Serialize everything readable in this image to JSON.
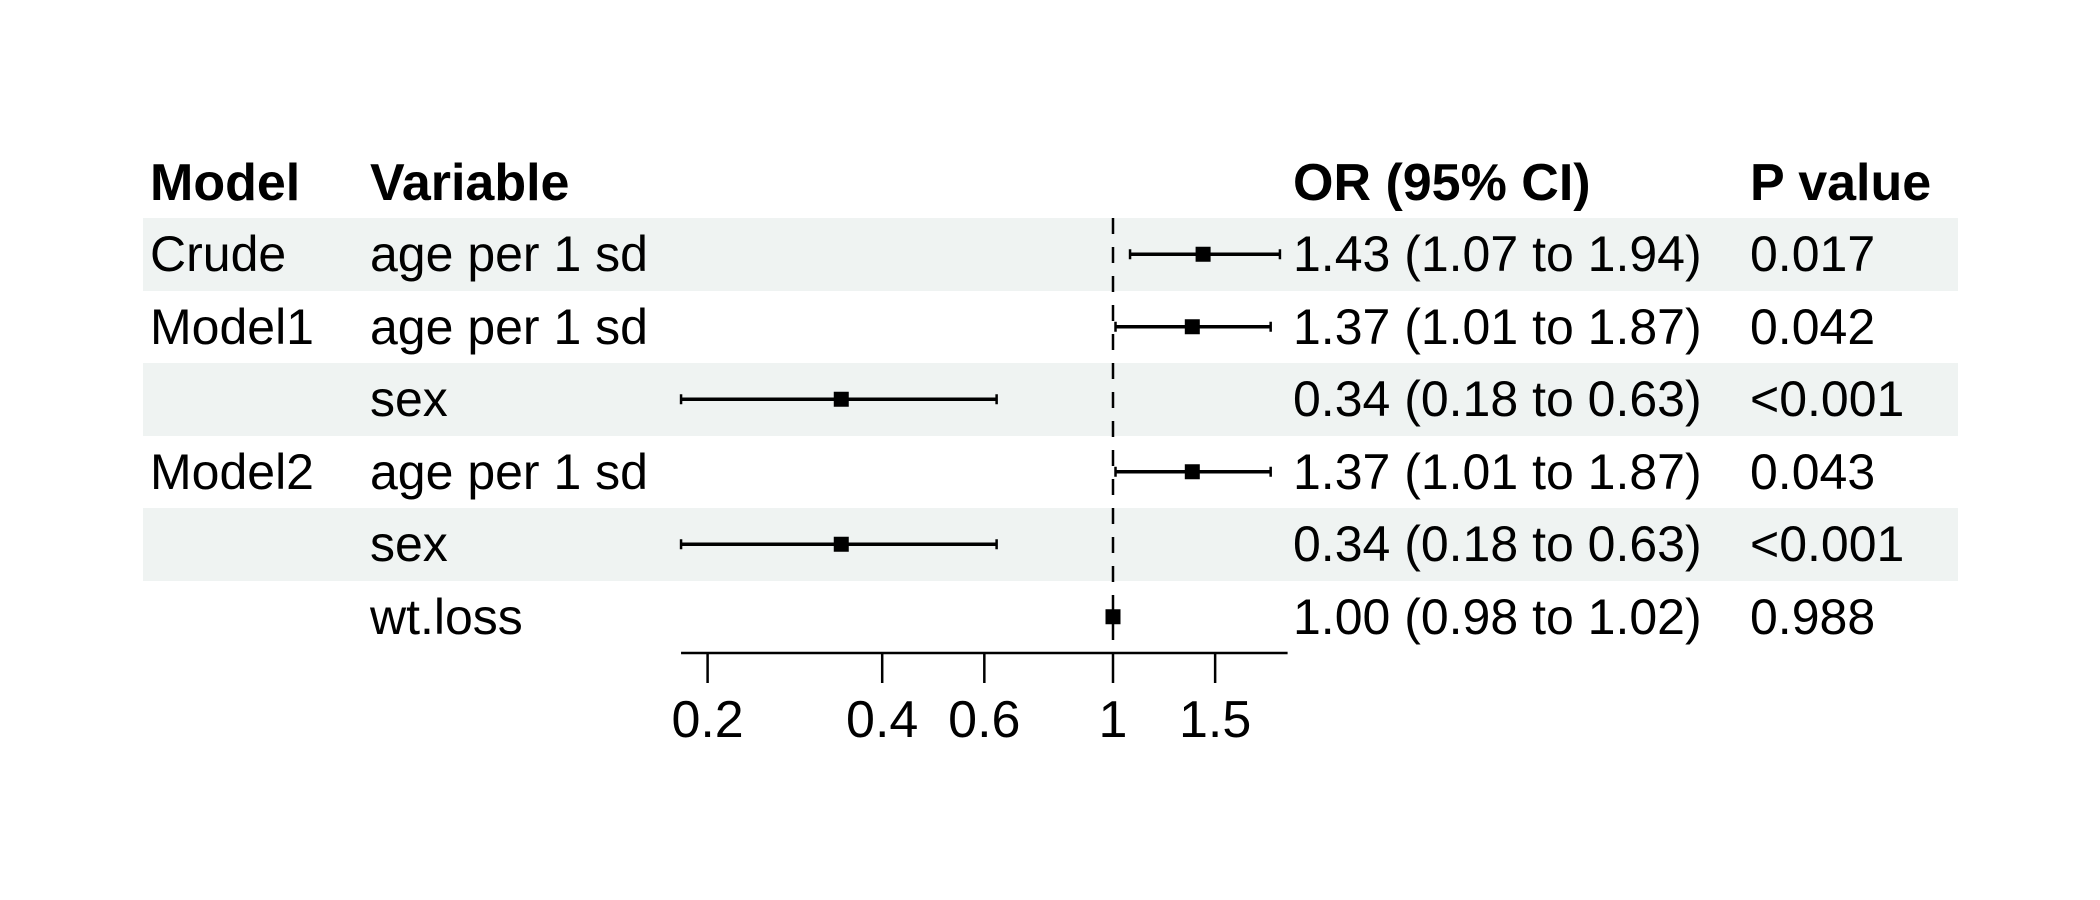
{
  "header": {
    "model": "Model",
    "variable": "Variable",
    "or_ci": "OR (95% CI)",
    "p": "P value"
  },
  "colors": {
    "stripe": "#eff3f2",
    "ink": "#000000",
    "background": "#ffffff"
  },
  "chart_data": {
    "type": "scatter",
    "subtype": "forest-plot",
    "title": "",
    "xlabel": "",
    "x_scale": "log10",
    "xlim": [
      0.18,
      2.0
    ],
    "x_ticks": [
      0.2,
      0.4,
      0.6,
      1,
      1.5
    ],
    "x_tick_labels": [
      "0.2",
      "0.4",
      "0.6",
      "1",
      "1.5"
    ],
    "reference_line": 1,
    "rows": [
      {
        "model": "Crude",
        "variable": "age per 1 sd",
        "est": 1.43,
        "lo": 1.07,
        "hi": 1.94,
        "or_ci": "1.43 (1.07 to 1.94)",
        "p": "0.017",
        "striped": true
      },
      {
        "model": "Model1",
        "variable": "age per 1 sd",
        "est": 1.37,
        "lo": 1.01,
        "hi": 1.87,
        "or_ci": "1.37 (1.01 to 1.87)",
        "p": "0.042",
        "striped": false
      },
      {
        "model": "",
        "variable": "sex",
        "est": 0.34,
        "lo": 0.18,
        "hi": 0.63,
        "or_ci": "0.34 (0.18 to 0.63)",
        "p": "<0.001",
        "striped": true
      },
      {
        "model": "Model2",
        "variable": "age per 1 sd",
        "est": 1.37,
        "lo": 1.01,
        "hi": 1.87,
        "or_ci": "1.37 (1.01 to 1.87)",
        "p": "0.043",
        "striped": false
      },
      {
        "model": "",
        "variable": "sex",
        "est": 0.34,
        "lo": 0.18,
        "hi": 0.63,
        "or_ci": "0.34 (0.18 to 0.63)",
        "p": "<0.001",
        "striped": true
      },
      {
        "model": "",
        "variable": "wt.loss",
        "est": 1.0,
        "lo": 0.98,
        "hi": 1.02,
        "or_ci": "1.00 (0.98 to 1.02)",
        "p": "0.988",
        "striped": false
      }
    ]
  }
}
